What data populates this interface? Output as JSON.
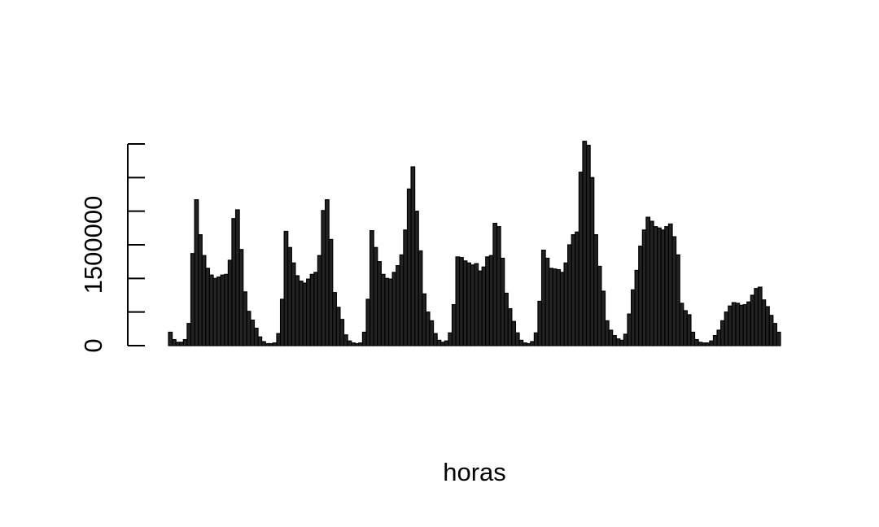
{
  "chart_data": {
    "type": "bar",
    "title": "",
    "xlabel": "horas",
    "ylabel": "",
    "ylim": [
      0,
      3000000
    ],
    "y_ticks": [
      0,
      500000,
      1000000,
      1500000,
      2000000,
      2500000,
      3000000
    ],
    "y_tick_labels": [
      "0",
      "",
      "",
      "1500000",
      "",
      "",
      ""
    ],
    "bar_fill": "#222222",
    "bar_stroke": "#000000",
    "values": [
      200000,
      90000,
      50000,
      50000,
      90000,
      330000,
      1370000,
      2170000,
      1650000,
      1340000,
      1150000,
      1050000,
      1000000,
      1020000,
      1050000,
      1060000,
      1270000,
      1890000,
      2020000,
      1430000,
      800000,
      510000,
      380000,
      260000,
      130000,
      60000,
      30000,
      30000,
      40000,
      180000,
      690000,
      1700000,
      1460000,
      1230000,
      1040000,
      960000,
      930000,
      990000,
      1060000,
      1090000,
      1340000,
      2010000,
      2170000,
      1580000,
      790000,
      570000,
      390000,
      160000,
      70000,
      40000,
      30000,
      40000,
      200000,
      690000,
      1710000,
      1460000,
      1250000,
      1060000,
      1000000,
      990000,
      1090000,
      1190000,
      1350000,
      1720000,
      2330000,
      2660000,
      2000000,
      1410000,
      770000,
      500000,
      370000,
      180000,
      80000,
      50000,
      70000,
      190000,
      610000,
      1320000,
      1310000,
      1260000,
      1230000,
      1200000,
      1220000,
      1110000,
      1170000,
      1320000,
      1340000,
      1820000,
      1770000,
      1300000,
      780000,
      550000,
      360000,
      190000,
      80000,
      40000,
      30000,
      60000,
      190000,
      660000,
      1420000,
      1300000,
      1150000,
      1140000,
      1130000,
      1090000,
      1230000,
      1500000,
      1650000,
      1690000,
      2580000,
      3040000,
      2980000,
      2500000,
      1650000,
      1180000,
      810000,
      370000,
      230000,
      150000,
      100000,
      80000,
      170000,
      470000,
      830000,
      1120000,
      1480000,
      1720000,
      1910000,
      1850000,
      1770000,
      1750000,
      1720000,
      1770000,
      1810000,
      1620000,
      1350000,
      630000,
      520000,
      460000,
      200000,
      90000,
      50000,
      40000,
      40000,
      70000,
      150000,
      230000,
      370000,
      500000,
      590000,
      640000,
      630000,
      600000,
      610000,
      650000,
      750000,
      850000,
      870000,
      680000,
      580000,
      450000,
      330000,
      200000
    ]
  }
}
